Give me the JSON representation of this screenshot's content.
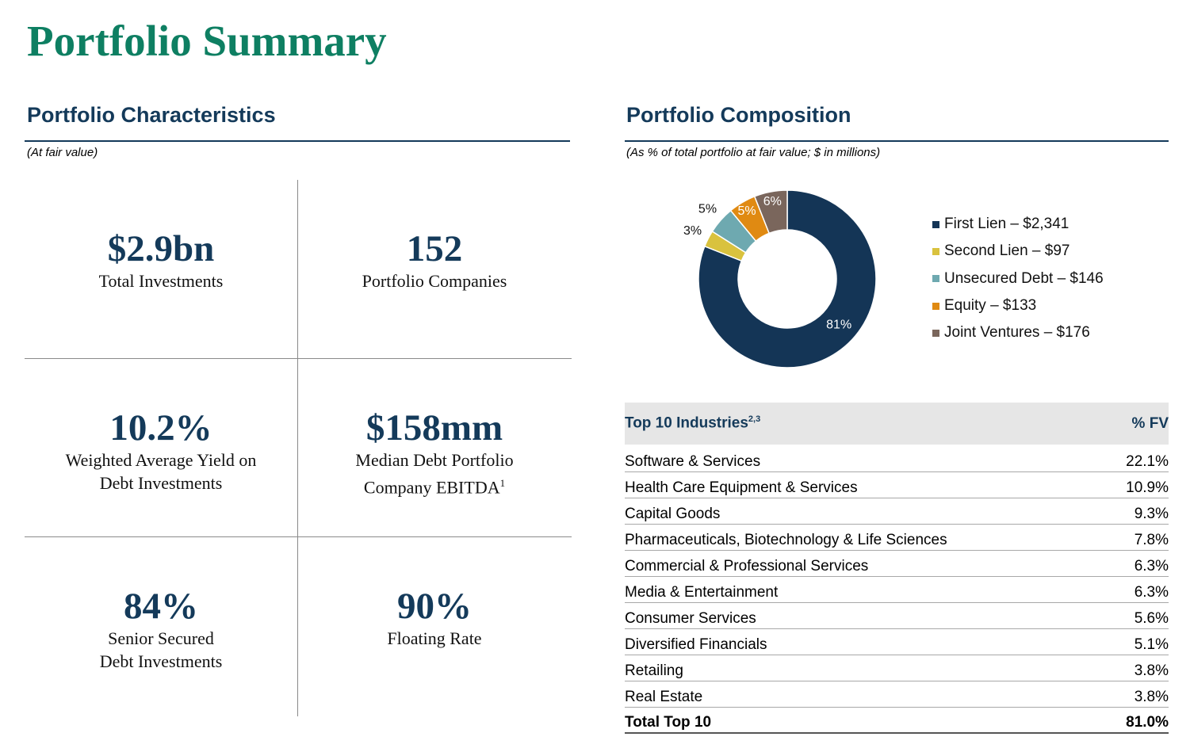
{
  "page": {
    "title": "Portfolio Summary"
  },
  "characteristics": {
    "heading": "Portfolio Characteristics",
    "note": "(At fair value)",
    "kpis": [
      {
        "value": "$2.9bn",
        "label_line1": "Total Investments",
        "label_line2": ""
      },
      {
        "value": "152",
        "label_line1": "Portfolio Companies",
        "label_line2": ""
      },
      {
        "value": "10.2%",
        "label_line1": "Weighted Average Yield on",
        "label_line2": "Debt Investments"
      },
      {
        "value": "$158mm",
        "label_line1": "Median Debt Portfolio",
        "label_line2": "Company EBITDA",
        "footnote": "1"
      },
      {
        "value": "84%",
        "label_line1": "Senior Secured",
        "label_line2": "Debt Investments"
      },
      {
        "value": "90%",
        "label_line1": "Floating Rate",
        "label_line2": ""
      }
    ]
  },
  "composition": {
    "heading": "Portfolio Composition",
    "note": "(As % of total portfolio at fair value; $ in millions)",
    "legend": [
      {
        "label": "First Lien – $2,341",
        "color": "#143556"
      },
      {
        "label": "Second Lien – $97",
        "color": "#d9c23e"
      },
      {
        "label": "Unsecured Debt – $146",
        "color": "#6ea9b0"
      },
      {
        "label": "Equity – $133",
        "color": "#e08a12"
      },
      {
        "label": "Joint Ventures – $176",
        "color": "#7a665c"
      }
    ]
  },
  "chart_data": {
    "type": "pie",
    "donut": true,
    "categories": [
      "First Lien",
      "Second Lien",
      "Unsecured Debt",
      "Equity",
      "Joint Ventures"
    ],
    "values": [
      81,
      3,
      5,
      5,
      6
    ],
    "amounts": [
      2341,
      97,
      146,
      133,
      176
    ],
    "data_labels": [
      "81%",
      "3%",
      "5%",
      "5%",
      "6%"
    ],
    "colors": [
      "#143556",
      "#d9c23e",
      "#6ea9b0",
      "#e08a12",
      "#7a665c"
    ],
    "legend_position": "right"
  },
  "industries": {
    "header_label": "Top 10 Industries",
    "header_footnote": "2,3",
    "header_value": "% FV",
    "rows": [
      {
        "name": "Software & Services",
        "pct": "22.1%"
      },
      {
        "name": "Health Care Equipment & Services",
        "pct": "10.9%"
      },
      {
        "name": "Capital Goods",
        "pct": "9.3%"
      },
      {
        "name": "Pharmaceuticals, Biotechnology & Life Sciences",
        "pct": "7.8%"
      },
      {
        "name": "Commercial & Professional Services",
        "pct": "6.3%"
      },
      {
        "name": "Media & Entertainment",
        "pct": "6.3%"
      },
      {
        "name": "Consumer Services",
        "pct": "5.6%"
      },
      {
        "name": "Diversified Financials",
        "pct": "5.1%"
      },
      {
        "name": "Retailing",
        "pct": "3.8%"
      },
      {
        "name": "Real Estate",
        "pct": "3.8%"
      }
    ],
    "total_label": "Total Top 10",
    "total_value": "81.0%"
  }
}
